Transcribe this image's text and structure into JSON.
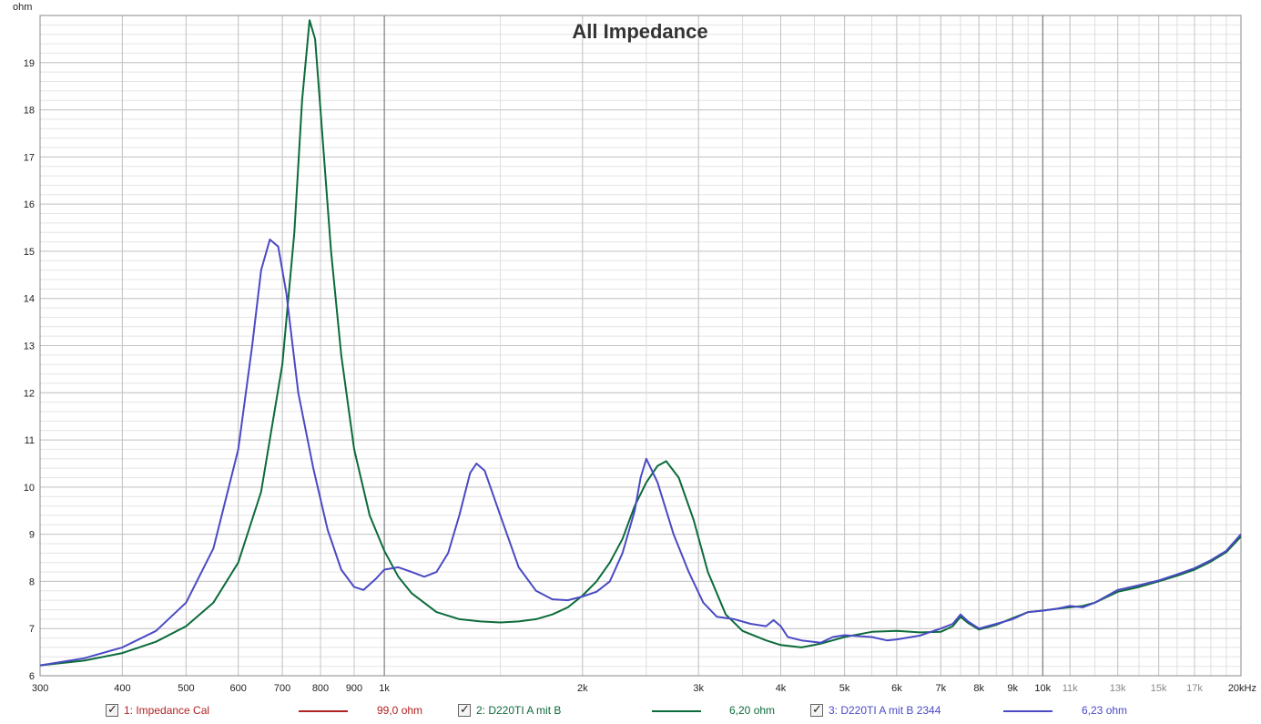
{
  "chart_data": {
    "type": "line",
    "title": "All Impedance",
    "ylabel": "ohm",
    "xscale": "log",
    "xlim": [
      300,
      20000
    ],
    "ylim": [
      6,
      20
    ],
    "yticks": [
      6,
      7,
      8,
      9,
      10,
      11,
      12,
      13,
      14,
      15,
      16,
      17,
      18,
      19
    ],
    "xticks": [
      {
        "v": 300,
        "label": "300",
        "minor": false
      },
      {
        "v": 400,
        "label": "400",
        "minor": false
      },
      {
        "v": 500,
        "label": "500",
        "minor": false
      },
      {
        "v": 600,
        "label": "600",
        "minor": false
      },
      {
        "v": 700,
        "label": "700",
        "minor": false
      },
      {
        "v": 800,
        "label": "800",
        "minor": false
      },
      {
        "v": 900,
        "label": "900",
        "minor": false
      },
      {
        "v": 1000,
        "label": "1k",
        "minor": false
      },
      {
        "v": 2000,
        "label": "2k",
        "minor": false
      },
      {
        "v": 3000,
        "label": "3k",
        "minor": false
      },
      {
        "v": 4000,
        "label": "4k",
        "minor": false
      },
      {
        "v": 5000,
        "label": "5k",
        "minor": false
      },
      {
        "v": 6000,
        "label": "6k",
        "minor": false
      },
      {
        "v": 7000,
        "label": "7k",
        "minor": false
      },
      {
        "v": 8000,
        "label": "8k",
        "minor": false
      },
      {
        "v": 9000,
        "label": "9k",
        "minor": false
      },
      {
        "v": 10000,
        "label": "10k",
        "minor": false
      },
      {
        "v": 11000,
        "label": "11k",
        "minor": true
      },
      {
        "v": 13000,
        "label": "13k",
        "minor": true
      },
      {
        "v": 15000,
        "label": "15k",
        "minor": true
      },
      {
        "v": 17000,
        "label": "17k",
        "minor": true
      },
      {
        "v": 20000,
        "label": "20kHz",
        "minor": false
      }
    ],
    "grid": true,
    "legend_position": "bottom",
    "series": [
      {
        "name": "1: Impedance Cal",
        "legend_value": "99,0 ohm",
        "color": "#b22222",
        "points": []
      },
      {
        "name": "2: D220TI A mit B",
        "legend_value": "6,20 ohm",
        "color": "#0b6b3a",
        "points": [
          [
            300,
            6.22
          ],
          [
            350,
            6.32
          ],
          [
            400,
            6.48
          ],
          [
            450,
            6.72
          ],
          [
            500,
            7.05
          ],
          [
            550,
            7.55
          ],
          [
            600,
            8.4
          ],
          [
            650,
            9.9
          ],
          [
            700,
            12.6
          ],
          [
            730,
            15.4
          ],
          [
            750,
            18.2
          ],
          [
            770,
            19.9
          ],
          [
            785,
            19.5
          ],
          [
            800,
            18.0
          ],
          [
            830,
            15.0
          ],
          [
            860,
            12.8
          ],
          [
            900,
            10.8
          ],
          [
            950,
            9.4
          ],
          [
            1000,
            8.65
          ],
          [
            1050,
            8.1
          ],
          [
            1100,
            7.75
          ],
          [
            1200,
            7.35
          ],
          [
            1300,
            7.2
          ],
          [
            1400,
            7.15
          ],
          [
            1500,
            7.13
          ],
          [
            1600,
            7.15
          ],
          [
            1700,
            7.2
          ],
          [
            1800,
            7.3
          ],
          [
            1900,
            7.45
          ],
          [
            2000,
            7.7
          ],
          [
            2100,
            8.0
          ],
          [
            2200,
            8.4
          ],
          [
            2300,
            8.9
          ],
          [
            2400,
            9.6
          ],
          [
            2500,
            10.1
          ],
          [
            2600,
            10.45
          ],
          [
            2680,
            10.55
          ],
          [
            2800,
            10.2
          ],
          [
            2950,
            9.3
          ],
          [
            3100,
            8.2
          ],
          [
            3300,
            7.3
          ],
          [
            3500,
            6.95
          ],
          [
            3800,
            6.75
          ],
          [
            4000,
            6.65
          ],
          [
            4300,
            6.6
          ],
          [
            4600,
            6.68
          ],
          [
            5000,
            6.82
          ],
          [
            5500,
            6.93
          ],
          [
            6000,
            6.95
          ],
          [
            6500,
            6.92
          ],
          [
            7000,
            6.93
          ],
          [
            7300,
            7.05
          ],
          [
            7500,
            7.25
          ],
          [
            7700,
            7.12
          ],
          [
            8000,
            6.98
          ],
          [
            8500,
            7.08
          ],
          [
            9000,
            7.22
          ],
          [
            9500,
            7.35
          ],
          [
            10000,
            7.38
          ],
          [
            10500,
            7.42
          ],
          [
            11000,
            7.45
          ],
          [
            11500,
            7.48
          ],
          [
            12000,
            7.55
          ],
          [
            13000,
            7.78
          ],
          [
            14000,
            7.88
          ],
          [
            15000,
            8.0
          ],
          [
            16000,
            8.12
          ],
          [
            17000,
            8.25
          ],
          [
            18000,
            8.42
          ],
          [
            19000,
            8.62
          ],
          [
            20000,
            8.95
          ]
        ]
      },
      {
        "name": "3: D220TI A mit B 2344",
        "legend_value": "6,23 ohm",
        "color": "#4a4ac4",
        "points": [
          [
            300,
            6.22
          ],
          [
            350,
            6.37
          ],
          [
            400,
            6.6
          ],
          [
            450,
            6.95
          ],
          [
            500,
            7.55
          ],
          [
            550,
            8.7
          ],
          [
            600,
            10.8
          ],
          [
            630,
            13.0
          ],
          [
            650,
            14.6
          ],
          [
            670,
            15.25
          ],
          [
            690,
            15.1
          ],
          [
            710,
            14.1
          ],
          [
            740,
            12.0
          ],
          [
            780,
            10.4
          ],
          [
            820,
            9.1
          ],
          [
            860,
            8.25
          ],
          [
            900,
            7.88
          ],
          [
            930,
            7.82
          ],
          [
            970,
            8.05
          ],
          [
            1000,
            8.25
          ],
          [
            1050,
            8.3
          ],
          [
            1100,
            8.2
          ],
          [
            1150,
            8.1
          ],
          [
            1200,
            8.2
          ],
          [
            1250,
            8.6
          ],
          [
            1300,
            9.4
          ],
          [
            1350,
            10.3
          ],
          [
            1380,
            10.5
          ],
          [
            1420,
            10.35
          ],
          [
            1500,
            9.4
          ],
          [
            1600,
            8.3
          ],
          [
            1700,
            7.8
          ],
          [
            1800,
            7.62
          ],
          [
            1900,
            7.6
          ],
          [
            2000,
            7.68
          ],
          [
            2100,
            7.78
          ],
          [
            2200,
            8.0
          ],
          [
            2300,
            8.6
          ],
          [
            2400,
            9.5
          ],
          [
            2450,
            10.2
          ],
          [
            2500,
            10.6
          ],
          [
            2600,
            10.1
          ],
          [
            2750,
            9.0
          ],
          [
            2900,
            8.2
          ],
          [
            3050,
            7.55
          ],
          [
            3200,
            7.25
          ],
          [
            3400,
            7.2
          ],
          [
            3600,
            7.1
          ],
          [
            3800,
            7.05
          ],
          [
            3900,
            7.18
          ],
          [
            4000,
            7.05
          ],
          [
            4100,
            6.82
          ],
          [
            4300,
            6.75
          ],
          [
            4600,
            6.7
          ],
          [
            4800,
            6.82
          ],
          [
            5000,
            6.86
          ],
          [
            5500,
            6.82
          ],
          [
            5800,
            6.75
          ],
          [
            6000,
            6.77
          ],
          [
            6500,
            6.85
          ],
          [
            7000,
            7.0
          ],
          [
            7300,
            7.1
          ],
          [
            7500,
            7.3
          ],
          [
            7700,
            7.15
          ],
          [
            8000,
            7.0
          ],
          [
            8500,
            7.1
          ],
          [
            9000,
            7.2
          ],
          [
            9500,
            7.35
          ],
          [
            10000,
            7.38
          ],
          [
            10500,
            7.42
          ],
          [
            11000,
            7.48
          ],
          [
            11500,
            7.45
          ],
          [
            12000,
            7.55
          ],
          [
            13000,
            7.82
          ],
          [
            14000,
            7.92
          ],
          [
            15000,
            8.02
          ],
          [
            16000,
            8.15
          ],
          [
            17000,
            8.28
          ],
          [
            18000,
            8.45
          ],
          [
            19000,
            8.65
          ],
          [
            20000,
            9.0
          ]
        ]
      }
    ]
  }
}
